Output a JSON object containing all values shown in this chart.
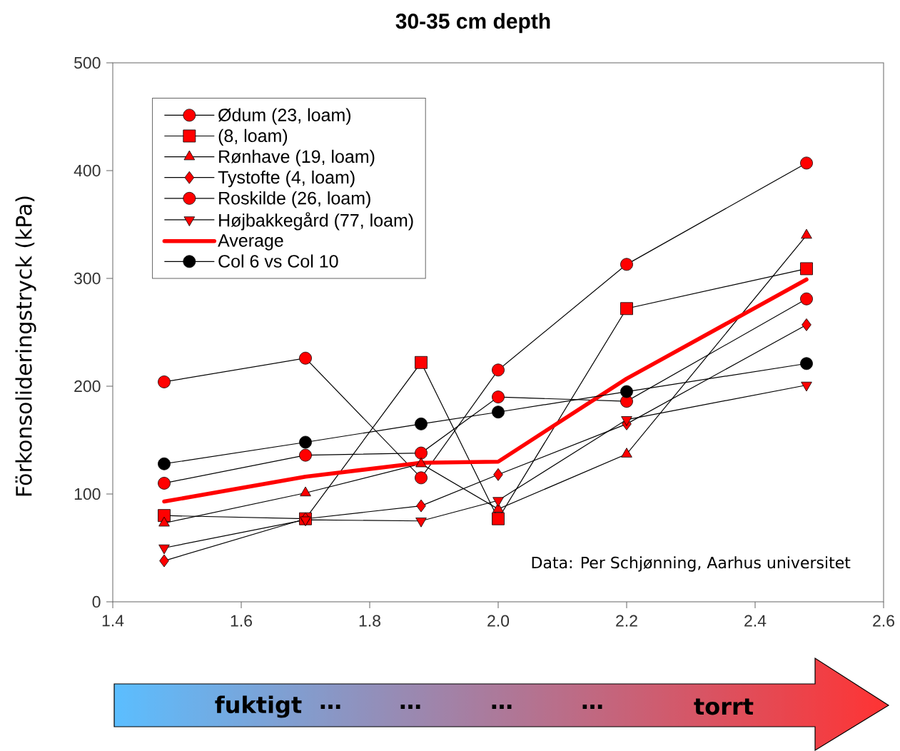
{
  "chart_data": {
    "type": "line",
    "title": "30-35 cm depth",
    "ylabel": "Förkonsolideringstryck (kPa)",
    "x": [
      1.48,
      1.7,
      1.88,
      2.0,
      2.2,
      2.48
    ],
    "xlim": [
      1.4,
      2.6
    ],
    "xticks": [
      1.4,
      1.6,
      1.8,
      {
        "value": 2.0,
        "label": "2.0"
      },
      2.2,
      2.4,
      2.6
    ],
    "ylim": [
      0,
      500
    ],
    "yticks": [
      0,
      100,
      200,
      300,
      400,
      500
    ],
    "legend": "top left",
    "series": [
      {
        "name": "Ødum (23, loam)",
        "color": "#ff0000",
        "marker": "circle",
        "values": [
          110,
          136,
          138,
          190,
          186,
          281
        ]
      },
      {
        "name": "(8, loam)",
        "color": "#ff0000",
        "marker": "square",
        "values": [
          80,
          77,
          222,
          77,
          272,
          309
        ]
      },
      {
        "name": "Rønhave (19, loam)",
        "color": "#ff0000",
        "marker": "triangle",
        "values": [
          73,
          101,
          128,
          86,
          137,
          340
        ]
      },
      {
        "name": "Tystofte (4, loam)",
        "color": "#ff0000",
        "marker": "diamond",
        "values": [
          38,
          77,
          89,
          118,
          165,
          257
        ]
      },
      {
        "name": "Roskilde (26, loam)",
        "color": "#ff0000",
        "marker": "circle",
        "values": [
          204,
          226,
          115,
          215,
          313,
          407
        ]
      },
      {
        "name": "Højbakkegård (77, loam)",
        "color": "#ff0000",
        "marker": "triangle-down",
        "values": [
          50,
          76,
          75,
          94,
          169,
          201
        ]
      },
      {
        "name": "Average",
        "color": "#ff0000",
        "marker": "none",
        "values": [
          93,
          116,
          129,
          130,
          207,
          299
        ]
      },
      {
        "name": "Col 6 vs Col 10",
        "color": "#000000",
        "marker": "circle",
        "values": [
          128,
          148,
          165,
          176,
          195,
          221
        ]
      }
    ],
    "annotations": [
      "Data: Per Schjønning, Aarhus universitet",
      "fuktigt",
      "…",
      "…",
      "…",
      "…",
      "torrt"
    ]
  }
}
